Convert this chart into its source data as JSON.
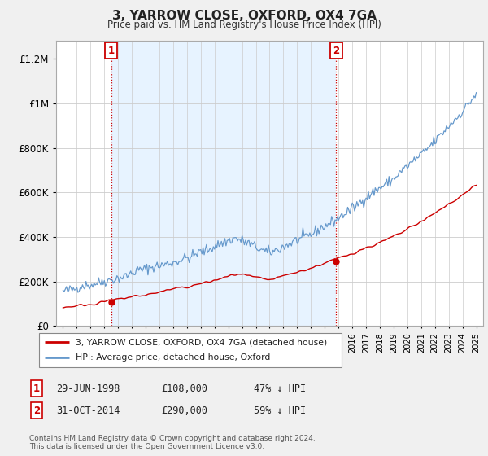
{
  "title": "3, YARROW CLOSE, OXFORD, OX4 7GA",
  "subtitle": "Price paid vs. HM Land Registry's House Price Index (HPI)",
  "legend_label_red": "3, YARROW CLOSE, OXFORD, OX4 7GA (detached house)",
  "legend_label_blue": "HPI: Average price, detached house, Oxford",
  "annotation1_date": "29-JUN-1998",
  "annotation1_price": "£108,000",
  "annotation1_hpi": "47% ↓ HPI",
  "annotation1_year": 1998.49,
  "annotation2_date": "31-OCT-2014",
  "annotation2_price": "£290,000",
  "annotation2_hpi": "59% ↓ HPI",
  "annotation2_year": 2014.83,
  "footer": "Contains HM Land Registry data © Crown copyright and database right 2024.\nThis data is licensed under the Open Government Licence v3.0.",
  "ylim": [
    0,
    1280000
  ],
  "xlim_start": 1994.5,
  "xlim_end": 2025.5,
  "red_color": "#cc0000",
  "blue_color": "#6699cc",
  "shade_color": "#ddeeff",
  "background_color": "#f0f0f0",
  "plot_bg_color": "#ffffff",
  "grid_color": "#cccccc",
  "yticks": [
    0,
    200000,
    400000,
    600000,
    800000,
    1000000,
    1200000
  ],
  "sale1_price": 108000,
  "sale2_price": 290000
}
